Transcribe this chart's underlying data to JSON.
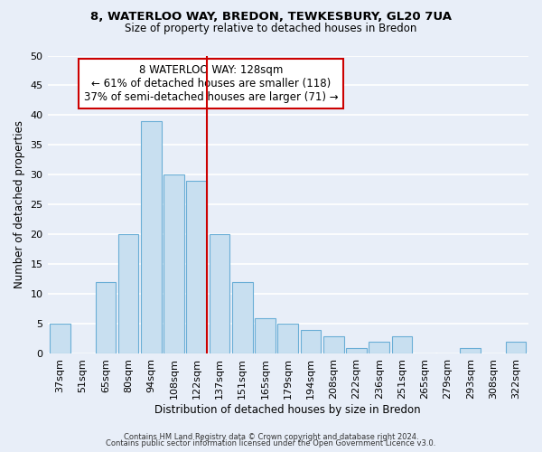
{
  "title1": "8, WATERLOO WAY, BREDON, TEWKESBURY, GL20 7UA",
  "title2": "Size of property relative to detached houses in Bredon",
  "xlabel": "Distribution of detached houses by size in Bredon",
  "ylabel": "Number of detached properties",
  "bar_labels": [
    "37sqm",
    "51sqm",
    "65sqm",
    "80sqm",
    "94sqm",
    "108sqm",
    "122sqm",
    "137sqm",
    "151sqm",
    "165sqm",
    "179sqm",
    "194sqm",
    "208sqm",
    "222sqm",
    "236sqm",
    "251sqm",
    "265sqm",
    "279sqm",
    "293sqm",
    "308sqm",
    "322sqm"
  ],
  "bar_values": [
    5,
    0,
    12,
    20,
    39,
    30,
    29,
    20,
    12,
    6,
    5,
    4,
    3,
    1,
    2,
    3,
    0,
    0,
    1,
    0,
    2
  ],
  "bar_color": "#c8dff0",
  "bar_edge_color": "#6aaed6",
  "vline_color": "#cc0000",
  "annotation_title": "8 WATERLOO WAY: 128sqm",
  "annotation_line1": "← 61% of detached houses are smaller (118)",
  "annotation_line2": "37% of semi-detached houses are larger (71) →",
  "annotation_box_color": "#ffffff",
  "annotation_box_edge": "#cc0000",
  "ylim": [
    0,
    50
  ],
  "yticks": [
    0,
    5,
    10,
    15,
    20,
    25,
    30,
    35,
    40,
    45,
    50
  ],
  "footer1": "Contains HM Land Registry data © Crown copyright and database right 2024.",
  "footer2": "Contains public sector information licensed under the Open Government Licence v3.0.",
  "background_color": "#e8eef8",
  "plot_background": "#e8eef8"
}
